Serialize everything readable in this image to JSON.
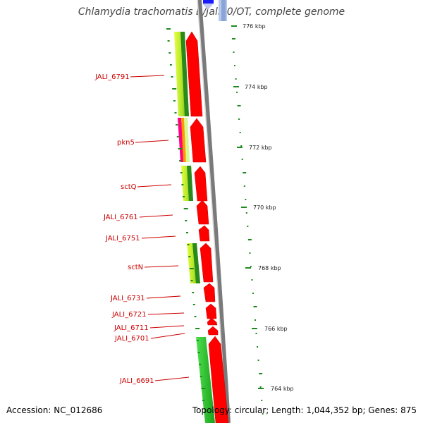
{
  "title": "Chlamydia trachomatis B/Jali20/OT, complete genome",
  "accession": "Accession: NC_012686",
  "summary": "Topology: circular; Length: 1,044,352 bp; Genes: 875",
  "colors": {
    "forward_gene": "#ff0000",
    "gene_label": "#cc0000",
    "backbone": "#888888",
    "top_strand": "#1a1aff",
    "top_strand_light": "#8fa8d8",
    "gc_skew": "#1f8a1f",
    "conservation_light": "#c8f02a",
    "conservation_mid": "#6cc020",
    "conservation_dark": "#2a8a1a",
    "conservation_bright": "#22cc22",
    "pkn5_magenta": "#ff0080",
    "pkn5_orange": "#ff9900"
  },
  "ticks": [
    {
      "label": "776 kbp"
    },
    {
      "label": "774 kbp"
    },
    {
      "label": "772 kbp"
    },
    {
      "label": "770 kbp"
    },
    {
      "label": "768 kbp"
    },
    {
      "label": "766 kbp"
    },
    {
      "label": "764 kbp"
    }
  ],
  "genes": [
    {
      "label": "JALI_6791"
    },
    {
      "label": "pkn5"
    },
    {
      "label": "sctQ"
    },
    {
      "label": "JALI_6761"
    },
    {
      "label": "JALI_6751"
    },
    {
      "label": "sctN"
    },
    {
      "label": "JALI_6731"
    },
    {
      "label": "JALI_6721"
    },
    {
      "label": "JALI_6711"
    },
    {
      "label": "JALI_6701"
    },
    {
      "label": "JALI_6691"
    }
  ]
}
